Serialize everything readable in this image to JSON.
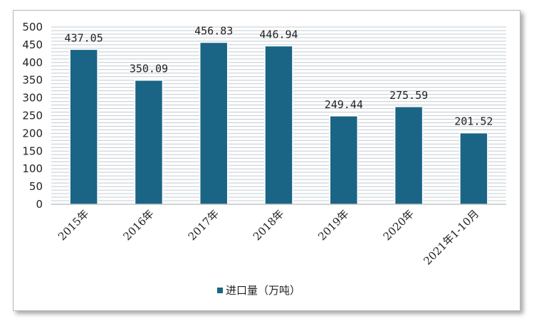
{
  "chart_data": {
    "type": "bar",
    "categories": [
      "2015年",
      "2016年",
      "2017年",
      "2018年",
      "2019年",
      "2020年",
      "2021年1-10月"
    ],
    "series": [
      {
        "name": "进口量（万吨）",
        "values": [
          437.05,
          350.09,
          456.83,
          446.94,
          249.44,
          275.59,
          201.52
        ]
      }
    ],
    "data_labels": [
      "437.05",
      "350.09",
      "456.83",
      "446.94",
      "249.44",
      "275.59",
      "201.52"
    ],
    "y_ticks": [
      0,
      50,
      100,
      150,
      200,
      250,
      300,
      350,
      400,
      450,
      500
    ],
    "ylim": [
      0,
      500
    ],
    "grid": true,
    "legend_position": "bottom",
    "colors": {
      "bar": "#1a6585",
      "grid": "#c3ccd3",
      "axis": "#a6a6a6"
    }
  }
}
